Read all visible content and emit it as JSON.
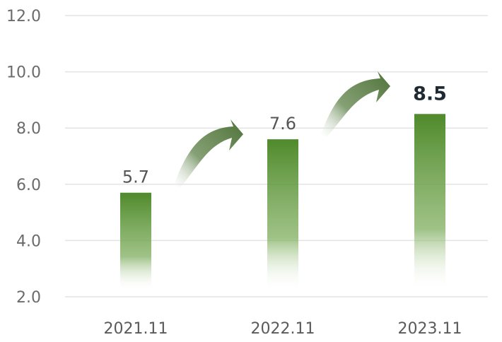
{
  "chart_data": {
    "type": "bar",
    "categories": [
      "2021.11",
      "2022.11",
      "2023.11"
    ],
    "values": [
      5.7,
      7.6,
      8.5
    ],
    "value_labels": [
      "5.7",
      "7.6",
      "8.5"
    ],
    "highlight_index": 2,
    "ylim": [
      2.0,
      12.0
    ],
    "yticks": [
      "2.0",
      "4.0",
      "6.0",
      "8.0",
      "10.0",
      "12.0"
    ],
    "grid": true,
    "bar_color": "#4f8a2b",
    "arrow_color": "#5c7d4a",
    "title": "",
    "xlabel": "",
    "ylabel": ""
  }
}
